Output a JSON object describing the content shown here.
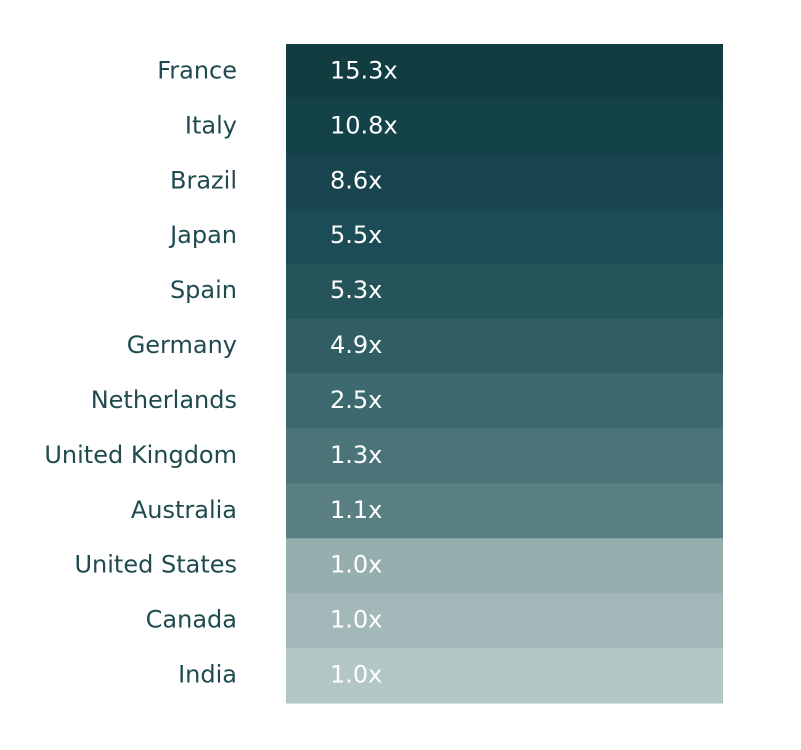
{
  "chart_data": {
    "type": "heatmap",
    "categories": [
      "France",
      "Italy",
      "Brazil",
      "Japan",
      "Spain",
      "Germany",
      "Netherlands",
      "United Kingdom",
      "Australia",
      "United States",
      "Canada",
      "India"
    ],
    "values": [
      15.3,
      10.8,
      8.6,
      5.5,
      5.3,
      4.9,
      2.5,
      1.3,
      1.1,
      1.0,
      1.0,
      1.0
    ],
    "value_labels": [
      "15.3x",
      "10.8x",
      "8.6x",
      "5.5x",
      "5.3x",
      "4.9x",
      "2.5x",
      "1.3x",
      "1.1x",
      "1.0x",
      "1.0x",
      "1.0x"
    ],
    "colors": [
      "#123d40",
      "#144249",
      "#17444e",
      "#1c4c55",
      "#25555b",
      "#305e63",
      "#3c6a6e",
      "#4a7478",
      "#5a7f83",
      "#97aeaf",
      "#a3b8b9",
      "#b3c6c6"
    ]
  }
}
